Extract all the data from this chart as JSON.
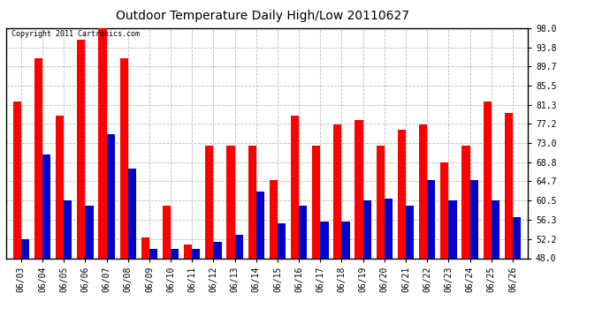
{
  "title": "Outdoor Temperature Daily High/Low 20110627",
  "copyright": "Copyright 2011 Cartronics.com",
  "dates": [
    "06/03",
    "06/04",
    "06/05",
    "06/06",
    "06/07",
    "06/08",
    "06/09",
    "06/10",
    "06/11",
    "06/12",
    "06/13",
    "06/14",
    "06/15",
    "06/16",
    "06/17",
    "06/18",
    "06/19",
    "06/20",
    "06/21",
    "06/22",
    "06/23",
    "06/24",
    "06/25",
    "06/26"
  ],
  "highs": [
    82.0,
    91.5,
    79.0,
    95.5,
    98.0,
    91.5,
    52.5,
    59.5,
    51.0,
    72.5,
    72.5,
    72.5,
    65.0,
    79.0,
    72.5,
    77.0,
    78.0,
    72.5,
    76.0,
    77.0,
    68.8,
    72.5,
    82.0,
    79.5
  ],
  "lows": [
    52.2,
    70.5,
    60.5,
    59.5,
    75.0,
    67.5,
    50.0,
    50.0,
    50.0,
    51.5,
    53.0,
    62.5,
    55.5,
    59.5,
    56.0,
    56.0,
    60.5,
    61.0,
    59.5,
    65.0,
    60.5,
    65.0,
    60.5,
    57.0
  ],
  "high_color": "#ff0000",
  "low_color": "#0000cc",
  "bg_color": "#ffffff",
  "grid_color": "#bbbbbb",
  "yticks": [
    48.0,
    52.2,
    56.3,
    60.5,
    64.7,
    68.8,
    73.0,
    77.2,
    81.3,
    85.5,
    89.7,
    93.8,
    98.0
  ],
  "ymin": 48.0,
  "ymax": 98.0,
  "bar_width": 0.38,
  "figwidth": 6.9,
  "figheight": 3.75,
  "dpi": 100
}
